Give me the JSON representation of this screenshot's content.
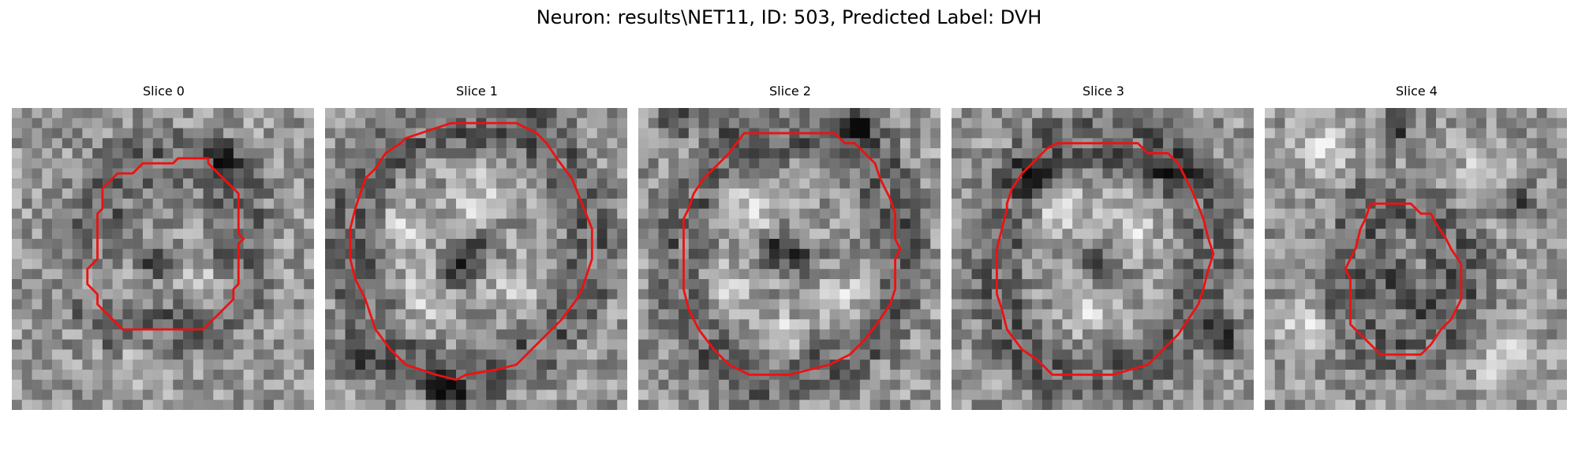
{
  "figure": {
    "title": "Neuron: results\\NET11, ID: 503, Predicted Label: DVH"
  },
  "colors": {
    "contour": "#ee1111"
  },
  "slices": [
    {
      "title": "Slice 0",
      "contour": [
        [
          16,
          5.5
        ],
        [
          16.5,
          5
        ],
        [
          19.5,
          5
        ],
        [
          19.5,
          5.5
        ],
        [
          22.5,
          8.5
        ],
        [
          22.5,
          12.5
        ],
        [
          23,
          13
        ],
        [
          22.5,
          13.5
        ],
        [
          22.5,
          17.5
        ],
        [
          22,
          18
        ],
        [
          22,
          19
        ],
        [
          19,
          22
        ],
        [
          11,
          22
        ],
        [
          8.5,
          19.5
        ],
        [
          8.5,
          18.5
        ],
        [
          7.5,
          17.5
        ],
        [
          7.5,
          16
        ],
        [
          8.5,
          15
        ],
        [
          8.5,
          10.5
        ],
        [
          9,
          10
        ],
        [
          9,
          8
        ],
        [
          10.5,
          6.5
        ],
        [
          12,
          6.5
        ],
        [
          13,
          5.5
        ]
      ],
      "bright_centers": [
        [
          9,
          17
        ],
        [
          20,
          18
        ],
        [
          13,
          25
        ]
      ],
      "dark_centers": [
        [
          14,
          15
        ],
        [
          21,
          5
        ]
      ]
    },
    {
      "title": "Slice 1",
      "contour": [
        [
          7.5,
          3.5
        ],
        [
          8,
          3
        ],
        [
          12.5,
          1.5
        ],
        [
          19,
          1.5
        ],
        [
          20,
          2
        ],
        [
          21,
          2.5
        ],
        [
          22,
          3.5
        ],
        [
          23,
          5
        ],
        [
          24.5,
          7
        ],
        [
          25.5,
          9.5
        ],
        [
          26.5,
          12
        ],
        [
          26.5,
          15
        ],
        [
          25.5,
          18
        ],
        [
          25,
          19
        ],
        [
          23.5,
          21
        ],
        [
          21.5,
          23
        ],
        [
          20,
          24.5
        ],
        [
          19.5,
          25
        ],
        [
          19,
          25.5
        ],
        [
          17,
          26
        ],
        [
          14,
          26.5
        ],
        [
          13,
          27
        ],
        [
          11,
          26.5
        ],
        [
          8,
          25.5
        ],
        [
          6.5,
          24
        ],
        [
          5,
          22
        ],
        [
          4,
          19
        ],
        [
          3,
          17
        ],
        [
          2.5,
          15
        ],
        [
          2.5,
          12
        ],
        [
          3,
          10
        ],
        [
          4,
          7
        ],
        [
          5,
          6
        ],
        [
          6,
          4.5
        ]
      ],
      "bright_centers": [
        [
          8,
          12
        ],
        [
          15,
          9
        ],
        [
          10,
          19
        ],
        [
          19,
          18
        ]
      ],
      "dark_centers": [
        [
          15,
          14
        ],
        [
          13,
          16
        ],
        [
          3,
          25
        ],
        [
          12,
          28
        ]
      ]
    },
    {
      "title": "Slice 2",
      "contour": [
        [
          10.5,
          2.5
        ],
        [
          11,
          2.5
        ],
        [
          19.5,
          2.5
        ],
        [
          20.5,
          3.5
        ],
        [
          21.5,
          3.5
        ],
        [
          22.5,
          4.5
        ],
        [
          23.5,
          5.5
        ],
        [
          24,
          7
        ],
        [
          25,
          9
        ],
        [
          25.5,
          10.5
        ],
        [
          25.5,
          13
        ],
        [
          26,
          14
        ],
        [
          25.5,
          15
        ],
        [
          25.5,
          18
        ],
        [
          25,
          19.5
        ],
        [
          24,
          21
        ],
        [
          22.5,
          23
        ],
        [
          21,
          24.5
        ],
        [
          19,
          25.5
        ],
        [
          17,
          26
        ],
        [
          15,
          26.5
        ],
        [
          11,
          26.5
        ],
        [
          9,
          25.5
        ],
        [
          7.5,
          24
        ],
        [
          6,
          22
        ],
        [
          5,
          20
        ],
        [
          4.5,
          18
        ],
        [
          4.5,
          16
        ],
        [
          4.5,
          11
        ],
        [
          5,
          10
        ],
        [
          5.5,
          8.5
        ],
        [
          6.5,
          7
        ],
        [
          7.5,
          6
        ],
        [
          9,
          4.5
        ]
      ],
      "bright_centers": [
        [
          8,
          18
        ],
        [
          21,
          19
        ],
        [
          14,
          23
        ],
        [
          11,
          10
        ]
      ],
      "dark_centers": [
        [
          14,
          14
        ],
        [
          16,
          15
        ],
        [
          4,
          1
        ],
        [
          22,
          2
        ]
      ]
    },
    {
      "title": "Slice 3",
      "contour": [
        [
          10.5,
          3.5
        ],
        [
          11,
          3.5
        ],
        [
          18.5,
          3.5
        ],
        [
          19.5,
          4.5
        ],
        [
          21.5,
          4.5
        ],
        [
          22.5,
          5.5
        ],
        [
          23,
          6.5
        ],
        [
          24,
          8.5
        ],
        [
          25,
          11
        ],
        [
          25.5,
          13
        ],
        [
          26,
          14.5
        ],
        [
          25.5,
          16
        ],
        [
          25,
          18
        ],
        [
          24.5,
          19.5
        ],
        [
          23.5,
          21
        ],
        [
          22.5,
          22.5
        ],
        [
          21,
          24
        ],
        [
          19.5,
          25.5
        ],
        [
          16,
          26.5
        ],
        [
          10,
          26.5
        ],
        [
          9,
          25.5
        ],
        [
          8.5,
          25
        ],
        [
          7,
          24
        ],
        [
          5.5,
          22
        ],
        [
          5,
          20
        ],
        [
          4.5,
          18.5
        ],
        [
          4.5,
          15
        ],
        [
          4.5,
          14
        ],
        [
          5.5,
          10
        ],
        [
          5.5,
          9.5
        ],
        [
          6,
          8
        ],
        [
          7,
          6.5
        ],
        [
          8.5,
          5
        ],
        [
          9.5,
          4
        ]
      ],
      "bright_centers": [
        [
          11,
          10
        ],
        [
          18,
          12
        ],
        [
          14,
          20
        ]
      ],
      "dark_centers": [
        [
          8,
          7
        ],
        [
          22,
          6
        ],
        [
          15,
          16
        ],
        [
          27,
          23
        ]
      ]
    },
    {
      "title": "Slice 4",
      "contour": [
        [
          10.5,
          9.5
        ],
        [
          11,
          9.5
        ],
        [
          14.5,
          9.5
        ],
        [
          15.5,
          10.5
        ],
        [
          16.5,
          10.5
        ],
        [
          17,
          11.5
        ],
        [
          18,
          13
        ],
        [
          18.5,
          14
        ],
        [
          19.5,
          15.5
        ],
        [
          19.5,
          19
        ],
        [
          19,
          20
        ],
        [
          18.5,
          21
        ],
        [
          17.5,
          22
        ],
        [
          16.5,
          23.5
        ],
        [
          15.5,
          24.5
        ],
        [
          11.5,
          24.5
        ],
        [
          10,
          23
        ],
        [
          9,
          22
        ],
        [
          8.5,
          21.5
        ],
        [
          8.5,
          18
        ],
        [
          8.5,
          17
        ],
        [
          8,
          16
        ],
        [
          8.5,
          15
        ],
        [
          9,
          14
        ],
        [
          9.5,
          12
        ],
        [
          10,
          11
        ]
      ],
      "bright_centers": [
        [
          6,
          4
        ],
        [
          22,
          6
        ],
        [
          4,
          22
        ],
        [
          24,
          25
        ]
      ],
      "dark_centers": [
        [
          13,
          17
        ],
        [
          15,
          19
        ],
        [
          25,
          9
        ],
        [
          13,
          2
        ]
      ]
    }
  ]
}
